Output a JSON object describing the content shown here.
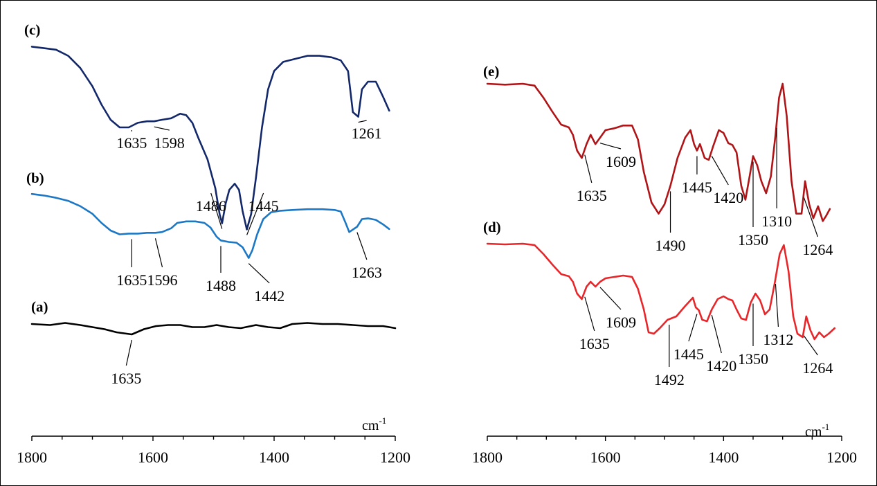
{
  "chart_data": [
    {
      "type": "line",
      "panel": "left",
      "xlabel": "cm",
      "xlabel_superscript": "-1",
      "xlim": [
        1800,
        1200
      ],
      "x_ticks": [
        "1800",
        "1600",
        "1400",
        "1200"
      ],
      "y_axis_shown": false,
      "grid": false,
      "series": [
        {
          "name": "(c)",
          "color": "#13286a",
          "points": [
            [
              1800,
              -0.02
            ],
            [
              1780,
              -0.03
            ],
            [
              1760,
              -0.04
            ],
            [
              1740,
              -0.08
            ],
            [
              1720,
              -0.16
            ],
            [
              1700,
              -0.28
            ],
            [
              1685,
              -0.4
            ],
            [
              1670,
              -0.5
            ],
            [
              1655,
              -0.55
            ],
            [
              1640,
              -0.55
            ],
            [
              1625,
              -0.52
            ],
            [
              1610,
              -0.51
            ],
            [
              1598,
              -0.51
            ],
            [
              1585,
              -0.5
            ],
            [
              1570,
              -0.49
            ],
            [
              1555,
              -0.46
            ],
            [
              1545,
              -0.47
            ],
            [
              1535,
              -0.52
            ],
            [
              1525,
              -0.62
            ],
            [
              1510,
              -0.76
            ],
            [
              1497,
              -0.95
            ],
            [
              1490,
              -1.12
            ],
            [
              1486,
              -1.18
            ],
            [
              1480,
              -1.05
            ],
            [
              1474,
              -0.96
            ],
            [
              1465,
              -0.92
            ],
            [
              1458,
              -0.96
            ],
            [
              1452,
              -1.1
            ],
            [
              1445,
              -1.22
            ],
            [
              1438,
              -1.12
            ],
            [
              1430,
              -0.88
            ],
            [
              1420,
              -0.55
            ],
            [
              1410,
              -0.3
            ],
            [
              1400,
              -0.18
            ],
            [
              1385,
              -0.12
            ],
            [
              1365,
              -0.1
            ],
            [
              1345,
              -0.08
            ],
            [
              1325,
              -0.08
            ],
            [
              1305,
              -0.09
            ],
            [
              1290,
              -0.11
            ],
            [
              1278,
              -0.18
            ],
            [
              1270,
              -0.45
            ],
            [
              1261,
              -0.48
            ],
            [
              1255,
              -0.3
            ],
            [
              1245,
              -0.25
            ],
            [
              1232,
              -0.25
            ],
            [
              1220,
              -0.35
            ],
            [
              1210,
              -0.44
            ]
          ]
        },
        {
          "name": "(b)",
          "color": "#1c77c4",
          "points": [
            [
              1800,
              -0.02
            ],
            [
              1780,
              -0.04
            ],
            [
              1760,
              -0.07
            ],
            [
              1740,
              -0.11
            ],
            [
              1720,
              -0.18
            ],
            [
              1700,
              -0.28
            ],
            [
              1685,
              -0.4
            ],
            [
              1670,
              -0.5
            ],
            [
              1655,
              -0.55
            ],
            [
              1640,
              -0.54
            ],
            [
              1625,
              -0.54
            ],
            [
              1610,
              -0.53
            ],
            [
              1596,
              -0.53
            ],
            [
              1585,
              -0.52
            ],
            [
              1570,
              -0.47
            ],
            [
              1560,
              -0.4
            ],
            [
              1545,
              -0.38
            ],
            [
              1530,
              -0.38
            ],
            [
              1515,
              -0.4
            ],
            [
              1505,
              -0.46
            ],
            [
              1495,
              -0.58
            ],
            [
              1488,
              -0.63
            ],
            [
              1475,
              -0.65
            ],
            [
              1462,
              -0.66
            ],
            [
              1452,
              -0.72
            ],
            [
              1442,
              -0.86
            ],
            [
              1436,
              -0.76
            ],
            [
              1428,
              -0.55
            ],
            [
              1418,
              -0.35
            ],
            [
              1405,
              -0.26
            ],
            [
              1390,
              -0.24
            ],
            [
              1370,
              -0.23
            ],
            [
              1345,
              -0.22
            ],
            [
              1320,
              -0.22
            ],
            [
              1300,
              -0.23
            ],
            [
              1290,
              -0.25
            ],
            [
              1282,
              -0.4
            ],
            [
              1276,
              -0.52
            ],
            [
              1263,
              -0.45
            ],
            [
              1255,
              -0.35
            ],
            [
              1245,
              -0.34
            ],
            [
              1232,
              -0.36
            ],
            [
              1220,
              -0.42
            ],
            [
              1210,
              -0.48
            ]
          ]
        },
        {
          "name": "(a)",
          "color": "#000000",
          "points": [
            [
              1800,
              -0.02
            ],
            [
              1770,
              -0.03
            ],
            [
              1745,
              -0.01
            ],
            [
              1720,
              -0.03
            ],
            [
              1700,
              -0.05
            ],
            [
              1680,
              -0.07
            ],
            [
              1660,
              -0.1
            ],
            [
              1635,
              -0.12
            ],
            [
              1615,
              -0.07
            ],
            [
              1595,
              -0.04
            ],
            [
              1575,
              -0.03
            ],
            [
              1555,
              -0.03
            ],
            [
              1535,
              -0.05
            ],
            [
              1515,
              -0.05
            ],
            [
              1495,
              -0.03
            ],
            [
              1475,
              -0.05
            ],
            [
              1455,
              -0.06
            ],
            [
              1430,
              -0.03
            ],
            [
              1410,
              -0.05
            ],
            [
              1390,
              -0.06
            ],
            [
              1370,
              -0.02
            ],
            [
              1345,
              -0.01
            ],
            [
              1320,
              -0.02
            ],
            [
              1295,
              -0.02
            ],
            [
              1270,
              -0.03
            ],
            [
              1245,
              -0.04
            ],
            [
              1220,
              -0.04
            ],
            [
              1200,
              -0.06
            ]
          ]
        }
      ],
      "annotations": [
        {
          "series": "(c)",
          "label": "1635"
        },
        {
          "series": "(c)",
          "label": "1598"
        },
        {
          "series": "(c)",
          "label": "1486"
        },
        {
          "series": "(c)",
          "label": "1445"
        },
        {
          "series": "(c)",
          "label": "1261"
        },
        {
          "series": "(b)",
          "label": "1635"
        },
        {
          "series": "(b)",
          "label": "1596"
        },
        {
          "series": "(b)",
          "label": "1488"
        },
        {
          "series": "(b)",
          "label": "1442"
        },
        {
          "series": "(b)",
          "label": "1263"
        },
        {
          "series": "(a)",
          "label": "1635"
        }
      ]
    },
    {
      "type": "line",
      "panel": "right",
      "xlabel": "cm",
      "xlabel_superscript": "-1",
      "xlim": [
        1800,
        1200
      ],
      "x_ticks": [
        "1800",
        "1600",
        "1400",
        "1200"
      ],
      "y_axis_shown": false,
      "grid": false,
      "series": [
        {
          "name": "(e)",
          "color": "#b01417",
          "points": [
            [
              1800,
              0.0
            ],
            [
              1770,
              -0.01
            ],
            [
              1740,
              0.0
            ],
            [
              1720,
              -0.02
            ],
            [
              1705,
              -0.15
            ],
            [
              1690,
              -0.3
            ],
            [
              1675,
              -0.44
            ],
            [
              1662,
              -0.47
            ],
            [
              1655,
              -0.55
            ],
            [
              1648,
              -0.72
            ],
            [
              1640,
              -0.8
            ],
            [
              1632,
              -0.65
            ],
            [
              1625,
              -0.55
            ],
            [
              1617,
              -0.65
            ],
            [
              1609,
              -0.58
            ],
            [
              1600,
              -0.5
            ],
            [
              1585,
              -0.48
            ],
            [
              1570,
              -0.45
            ],
            [
              1555,
              -0.45
            ],
            [
              1545,
              -0.6
            ],
            [
              1535,
              -0.95
            ],
            [
              1522,
              -1.28
            ],
            [
              1510,
              -1.4
            ],
            [
              1500,
              -1.3
            ],
            [
              1490,
              -1.1
            ],
            [
              1478,
              -0.8
            ],
            [
              1465,
              -0.58
            ],
            [
              1456,
              -0.5
            ],
            [
              1450,
              -0.65
            ],
            [
              1445,
              -0.72
            ],
            [
              1440,
              -0.65
            ],
            [
              1432,
              -0.8
            ],
            [
              1425,
              -0.82
            ],
            [
              1418,
              -0.68
            ],
            [
              1408,
              -0.5
            ],
            [
              1400,
              -0.53
            ],
            [
              1392,
              -0.64
            ],
            [
              1385,
              -0.66
            ],
            [
              1378,
              -0.74
            ],
            [
              1370,
              -1.1
            ],
            [
              1363,
              -1.25
            ],
            [
              1356,
              -1.0
            ],
            [
              1350,
              -0.78
            ],
            [
              1343,
              -0.88
            ],
            [
              1336,
              -1.05
            ],
            [
              1328,
              -1.18
            ],
            [
              1320,
              -1.0
            ],
            [
              1312,
              -0.55
            ],
            [
              1306,
              -0.15
            ],
            [
              1300,
              0.0
            ],
            [
              1293,
              -0.35
            ],
            [
              1285,
              -1.05
            ],
            [
              1277,
              -1.4
            ],
            [
              1268,
              -1.4
            ],
            [
              1262,
              -1.05
            ],
            [
              1255,
              -1.3
            ],
            [
              1248,
              -1.45
            ],
            [
              1240,
              -1.32
            ],
            [
              1232,
              -1.48
            ],
            [
              1226,
              -1.42
            ],
            [
              1220,
              -1.35
            ]
          ]
        },
        {
          "name": "(d)",
          "color": "#e8262a",
          "points": [
            [
              1800,
              0.0
            ],
            [
              1770,
              -0.01
            ],
            [
              1740,
              0.0
            ],
            [
              1720,
              -0.02
            ],
            [
              1705,
              -0.15
            ],
            [
              1690,
              -0.3
            ],
            [
              1675,
              -0.44
            ],
            [
              1662,
              -0.47
            ],
            [
              1655,
              -0.55
            ],
            [
              1648,
              -0.72
            ],
            [
              1640,
              -0.8
            ],
            [
              1632,
              -0.62
            ],
            [
              1625,
              -0.55
            ],
            [
              1617,
              -0.62
            ],
            [
              1609,
              -0.55
            ],
            [
              1600,
              -0.5
            ],
            [
              1585,
              -0.48
            ],
            [
              1570,
              -0.46
            ],
            [
              1555,
              -0.48
            ],
            [
              1545,
              -0.65
            ],
            [
              1535,
              -0.95
            ],
            [
              1527,
              -1.28
            ],
            [
              1518,
              -1.3
            ],
            [
              1508,
              -1.22
            ],
            [
              1495,
              -1.1
            ],
            [
              1480,
              -1.05
            ],
            [
              1465,
              -0.9
            ],
            [
              1452,
              -0.78
            ],
            [
              1447,
              -0.92
            ],
            [
              1442,
              -0.96
            ],
            [
              1436,
              -1.1
            ],
            [
              1428,
              -1.12
            ],
            [
              1420,
              -0.95
            ],
            [
              1410,
              -0.8
            ],
            [
              1400,
              -0.76
            ],
            [
              1392,
              -0.8
            ],
            [
              1385,
              -0.82
            ],
            [
              1378,
              -0.95
            ],
            [
              1370,
              -1.08
            ],
            [
              1362,
              -1.1
            ],
            [
              1354,
              -0.85
            ],
            [
              1346,
              -0.72
            ],
            [
              1338,
              -0.82
            ],
            [
              1330,
              -1.02
            ],
            [
              1322,
              -0.95
            ],
            [
              1313,
              -0.55
            ],
            [
              1305,
              -0.15
            ],
            [
              1298,
              -0.02
            ],
            [
              1290,
              -0.4
            ],
            [
              1282,
              -1.05
            ],
            [
              1275,
              -1.3
            ],
            [
              1266,
              -1.35
            ],
            [
              1260,
              -1.05
            ],
            [
              1253,
              -1.25
            ],
            [
              1246,
              -1.38
            ],
            [
              1238,
              -1.28
            ],
            [
              1230,
              -1.35
            ],
            [
              1222,
              -1.3
            ],
            [
              1212,
              -1.22
            ]
          ]
        }
      ],
      "annotations": [
        {
          "series": "(e)",
          "label": "1635"
        },
        {
          "series": "(e)",
          "label": "1609"
        },
        {
          "series": "(e)",
          "label": "1490"
        },
        {
          "series": "(e)",
          "label": "1445"
        },
        {
          "series": "(e)",
          "label": "1420"
        },
        {
          "series": "(e)",
          "label": "1350"
        },
        {
          "series": "(e)",
          "label": "1310"
        },
        {
          "series": "(e)",
          "label": "1264"
        },
        {
          "series": "(d)",
          "label": "1635"
        },
        {
          "series": "(d)",
          "label": "1609"
        },
        {
          "series": "(d)",
          "label": "1492"
        },
        {
          "series": "(d)",
          "label": "1445"
        },
        {
          "series": "(d)",
          "label": "1420"
        },
        {
          "series": "(d)",
          "label": "1350"
        },
        {
          "series": "(d)",
          "label": "1312"
        },
        {
          "series": "(d)",
          "label": "1264"
        }
      ]
    }
  ]
}
